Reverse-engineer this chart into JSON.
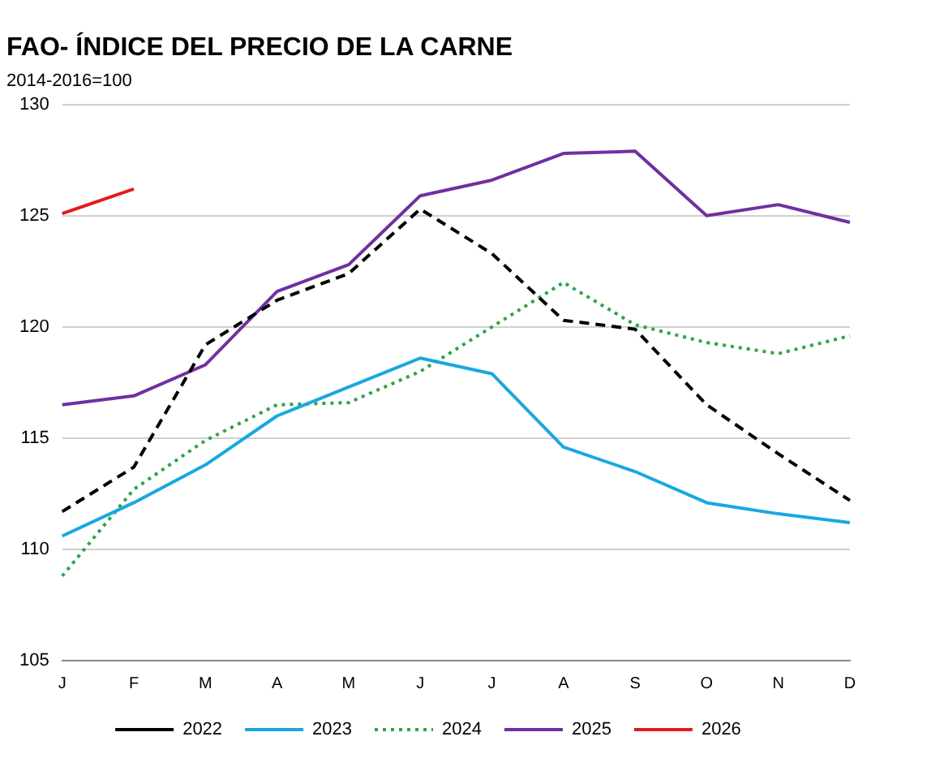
{
  "chart_data": {
    "type": "line",
    "title": "FAO- ÍNDICE DEL PRECIO DE LA CARNE",
    "subtitle": "2014-2016=100",
    "categories": [
      "J",
      "F",
      "M",
      "A",
      "M",
      "J",
      "J",
      "A",
      "S",
      "O",
      "N",
      "D"
    ],
    "series": [
      {
        "name": "2022",
        "color": "#000000",
        "line_style": "dashed",
        "values": [
          111.7,
          113.7,
          119.2,
          121.2,
          122.4,
          125.3,
          123.3,
          120.3,
          119.9,
          116.5,
          114.3,
          112.2
        ]
      },
      {
        "name": "2023",
        "color": "#1aa7e0",
        "line_style": "solid",
        "values": [
          110.6,
          112.1,
          113.8,
          116.0,
          117.3,
          118.6,
          117.9,
          114.6,
          113.5,
          112.1,
          111.6,
          111.2
        ]
      },
      {
        "name": "2024",
        "color": "#2fa34a",
        "line_style": "dotted",
        "values": [
          108.8,
          112.7,
          114.9,
          116.5,
          116.6,
          118.0,
          120.0,
          122.0,
          120.1,
          119.3,
          118.8,
          119.6
        ]
      },
      {
        "name": "2025",
        "color": "#7030a0",
        "line_style": "solid",
        "values": [
          116.5,
          116.9,
          118.3,
          121.6,
          122.8,
          125.9,
          126.6,
          127.8,
          127.9,
          125.0,
          125.5,
          124.7
        ]
      },
      {
        "name": "2026",
        "color": "#e31a1c",
        "line_style": "solid",
        "values": [
          125.1,
          126.2,
          null,
          null,
          null,
          null,
          null,
          null,
          null,
          null,
          null,
          null
        ]
      }
    ],
    "ylim": [
      105,
      130
    ],
    "yticks": [
      105,
      110,
      115,
      120,
      125,
      130
    ],
    "grid": "y",
    "legend": "bottom",
    "marker": "none"
  }
}
